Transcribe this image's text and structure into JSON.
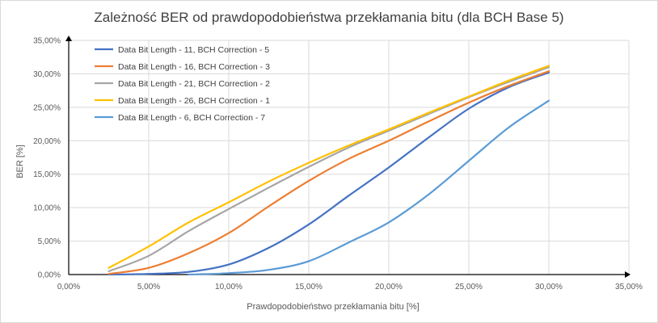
{
  "chart_data": {
    "type": "line",
    "title": "Zależność BER od prawdopodobieństwa przekłamania bitu (dla BCH Base 5)",
    "xlabel": "Prawdopodobieństwo przekłamania bitu [%]",
    "ylabel": "BER [%]",
    "xlim": [
      0,
      35
    ],
    "ylim": [
      0,
      35
    ],
    "x_ticks": [
      "0,00%",
      "5,00%",
      "10,00%",
      "15,00%",
      "20,00%",
      "25,00%",
      "30,00%",
      "35,00%"
    ],
    "y_ticks": [
      "0,00%",
      "5,00%",
      "10,00%",
      "15,00%",
      "20,00%",
      "25,00%",
      "30,00%",
      "35,00%"
    ],
    "grid": true,
    "legend_position": "top-left",
    "series": [
      {
        "name": "Data Bit Length - 11, BCH Correction - 5",
        "color": "#4472c4",
        "x": [
          2.5,
          5,
          7.5,
          10,
          12.5,
          15,
          17.5,
          20,
          22.5,
          25,
          27.5,
          30
        ],
        "y": [
          0.0,
          0.1,
          0.4,
          1.5,
          4.0,
          7.5,
          11.8,
          16.0,
          20.5,
          24.8,
          28.0,
          30.2
        ]
      },
      {
        "name": "Data Bit Length - 16, BCH Correction - 3",
        "color": "#ed7d31",
        "x": [
          2.5,
          5,
          7.5,
          10,
          12.5,
          15,
          17.5,
          20,
          22.5,
          25,
          27.5,
          30
        ],
        "y": [
          0.1,
          1.0,
          3.2,
          6.2,
          10.2,
          14.0,
          17.3,
          20.0,
          22.9,
          25.7,
          28.2,
          30.4
        ]
      },
      {
        "name": "Data Bit Length - 21, BCH Correction - 2",
        "color": "#a5a5a5",
        "x": [
          2.5,
          5,
          7.5,
          10,
          12.5,
          15,
          17.5,
          20,
          22.5,
          25,
          27.5,
          30
        ],
        "y": [
          0.5,
          2.8,
          6.5,
          9.8,
          13.0,
          16.1,
          19.0,
          21.5,
          24.0,
          26.5,
          28.8,
          31.0
        ]
      },
      {
        "name": "Data Bit Length - 26, BCH Correction - 1",
        "color": "#ffc000",
        "x": [
          2.5,
          5,
          7.5,
          10,
          12.5,
          15,
          17.5,
          20,
          22.5,
          25,
          27.5,
          30
        ],
        "y": [
          1.0,
          4.2,
          7.8,
          10.8,
          13.9,
          16.7,
          19.3,
          21.7,
          24.2,
          26.6,
          29.0,
          31.2
        ]
      },
      {
        "name": "Data Bit Length - 6, BCH Correction - 7",
        "color": "#5b9bd5",
        "x": [
          7.5,
          10,
          12.5,
          15,
          17.5,
          20,
          22.5,
          25,
          27.5,
          30
        ],
        "y": [
          0.0,
          0.2,
          0.7,
          2.0,
          4.8,
          7.8,
          12.0,
          17.0,
          22.0,
          26.0
        ]
      }
    ]
  }
}
